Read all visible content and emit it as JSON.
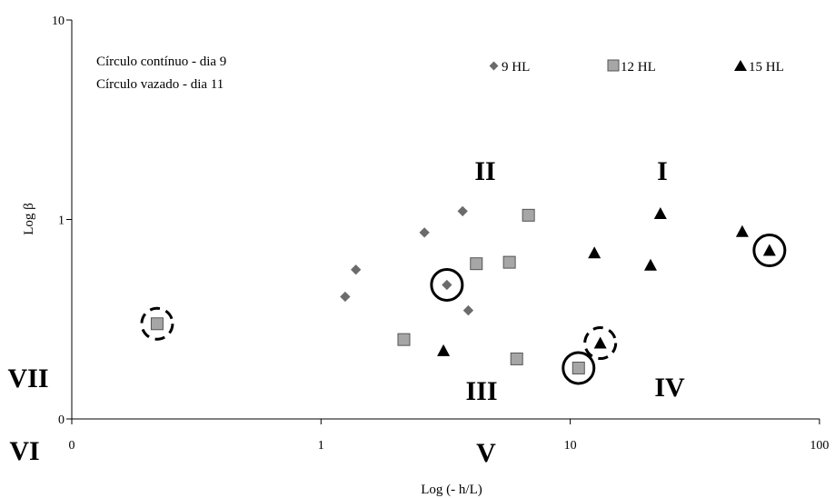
{
  "chart_data": {
    "type": "scatter",
    "xlabel": "Log (- h/L)",
    "ylabel": "Log β",
    "x_scale": "log",
    "y_scale": "log",
    "x_tick_labels": [
      "0",
      "1",
      "10",
      "100"
    ],
    "y_tick_labels": [
      "0",
      "1",
      "10"
    ],
    "notes": [
      "Círculo  contínuo - dia 9",
      "Círculo  vazado -  dia 11"
    ],
    "region_labels": [
      "I",
      "II",
      "III",
      "IV",
      "V",
      "VI",
      "VII"
    ],
    "series": [
      {
        "name": "9 HL",
        "marker": "diamond",
        "color": "#6b6b6b",
        "points": [
          {
            "x": 1.25,
            "y": 0.41
          },
          {
            "x": 1.38,
            "y": 0.56
          },
          {
            "x": 2.6,
            "y": 0.86
          },
          {
            "x": 3.2,
            "y": 0.47,
            "circle": "solid"
          },
          {
            "x": 3.7,
            "y": 1.1
          },
          {
            "x": 3.9,
            "y": 0.35
          }
        ]
      },
      {
        "name": "12 HL",
        "marker": "square",
        "color": "#a6a6a6",
        "points": [
          {
            "x": 0.22,
            "y": 0.3,
            "circle": "dashed"
          },
          {
            "x": 2.15,
            "y": 0.25
          },
          {
            "x": 4.2,
            "y": 0.6
          },
          {
            "x": 5.7,
            "y": 0.61
          },
          {
            "x": 6.1,
            "y": 0.2
          },
          {
            "x": 6.8,
            "y": 1.05
          },
          {
            "x": 10.8,
            "y": 0.18,
            "circle": "solid"
          }
        ]
      },
      {
        "name": "15 HL",
        "marker": "triangle",
        "color": "#000000",
        "points": [
          {
            "x": 3.1,
            "y": 0.22
          },
          {
            "x": 12.5,
            "y": 0.68
          },
          {
            "x": 13.2,
            "y": 0.24,
            "circle": "dashed"
          },
          {
            "x": 21,
            "y": 0.59
          },
          {
            "x": 23,
            "y": 1.07
          },
          {
            "x": 49,
            "y": 0.87
          },
          {
            "x": 63,
            "y": 0.7,
            "circle": "solid"
          }
        ]
      }
    ]
  }
}
